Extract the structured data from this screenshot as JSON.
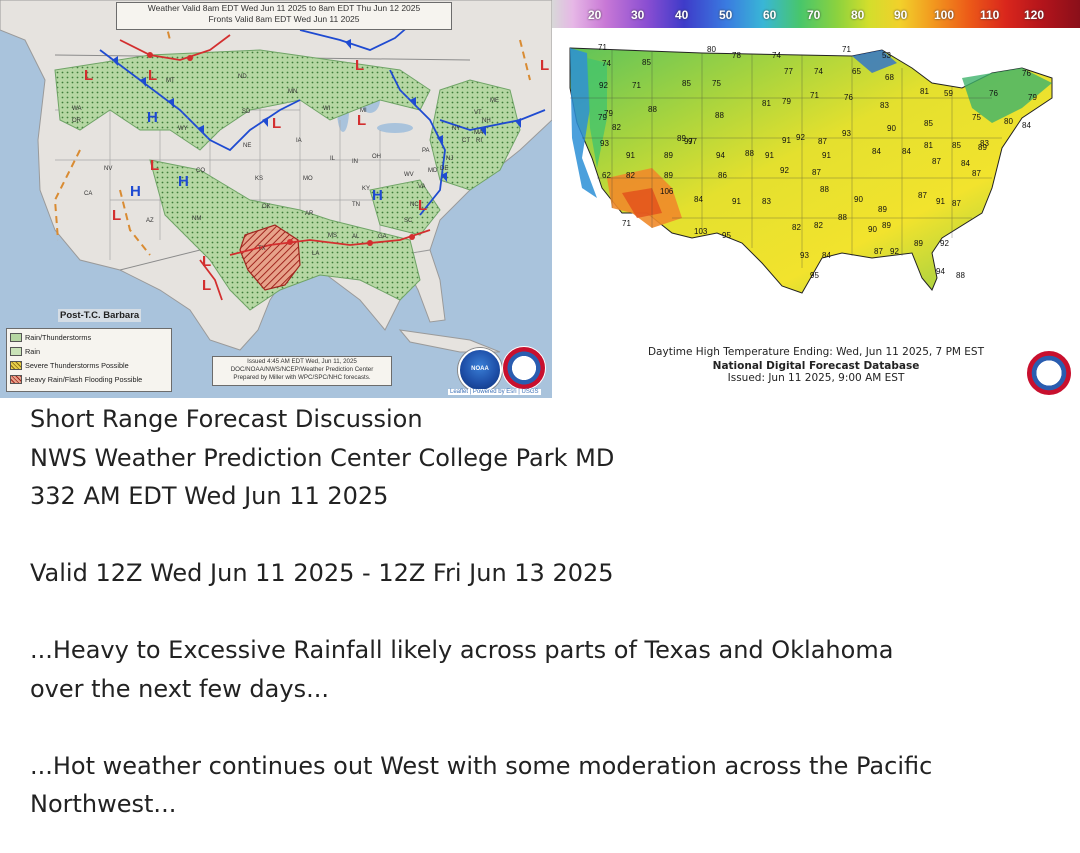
{
  "left_map": {
    "valid_line1": "Weather Valid 8am EDT Wed Jun 11 2025 to 8am EDT Thu Jun 12 2025",
    "valid_line2": "Fronts Valid 8am EDT Wed Jun 11 2025",
    "post_storm_label": "Post-T.C. Barbara",
    "legend": [
      {
        "label": "Rain/Thunderstorms",
        "color": "#a8cf9a"
      },
      {
        "label": "Rain",
        "color": "#b9dca8"
      },
      {
        "label": "Severe Thunderstorms Possible",
        "color": "#e8d04a"
      },
      {
        "label": "Heavy Rain/Flash Flooding Possible",
        "color": "#d04a45"
      }
    ],
    "issued_line1": "Issued 4:45 AM EDT Wed, Jun 11, 2025",
    "issued_line2": "DOC/NOAA/NWS/NCEP/Weather Prediction Center",
    "issued_line3": "Prepared by Miller with WPC/SPC/NHC forecasts.",
    "attribution": "Leaflet | Powered by Esri | USGS",
    "high_label": "H",
    "low_label": "L",
    "states": [
      "WA",
      "OR",
      "CA",
      "NV",
      "AZ",
      "MT",
      "WY",
      "CO",
      "NM",
      "ND",
      "SD",
      "NE",
      "KS",
      "OK",
      "TX",
      "MN",
      "IA",
      "MO",
      "AR",
      "LA",
      "WI",
      "IL",
      "IN",
      "OH",
      "KY",
      "TN",
      "MS",
      "AL",
      "GA",
      "MI",
      "PA",
      "WV",
      "VA",
      "NC",
      "SC",
      "NY",
      "ME",
      "VT",
      "NH",
      "MA",
      "CT",
      "RI",
      "NJ",
      "DE",
      "MD"
    ],
    "noaa_logo_text": "NOAA"
  },
  "right_map": {
    "scale_ticks": [
      "20",
      "30",
      "40",
      "50",
      "60",
      "70",
      "80",
      "90",
      "100",
      "110",
      "120"
    ],
    "caption_line1": "Daytime High Temperature Ending: Wed, Jun 11 2025, 7 PM EST",
    "caption_line2": "National Digital Forecast Database",
    "caption_line3": "Issued: Jun 11 2025, 9:00 AM EST",
    "temps": [
      "71",
      "74",
      "85",
      "80",
      "78",
      "74",
      "71",
      "53",
      "76",
      "79",
      "92",
      "71",
      "85",
      "75",
      "77",
      "74",
      "65",
      "68",
      "81",
      "59",
      "76",
      "79",
      "79",
      "88",
      "88",
      "81",
      "79",
      "71",
      "76",
      "83",
      "90",
      "85",
      "75",
      "80",
      "84",
      "82",
      "93",
      "89",
      "97",
      "94",
      "92",
      "93",
      "91",
      "87",
      "84",
      "84",
      "81",
      "85",
      "83",
      "91",
      "89",
      "88",
      "91",
      "91",
      "87",
      "84",
      "87",
      "89",
      "62",
      "82",
      "89",
      "92",
      "87",
      "106",
      "86",
      "88",
      "90",
      "89",
      "97",
      "84",
      "91",
      "83",
      "82",
      "82",
      "88",
      "89",
      "87",
      "91",
      "87",
      "71",
      "103",
      "95",
      "90",
      "87",
      "92",
      "89",
      "92",
      "93",
      "84",
      "94",
      "88",
      "95"
    ]
  },
  "discussion": {
    "line1": "Short Range Forecast Discussion",
    "line2": "NWS Weather Prediction Center College Park MD",
    "line3": "332 AM EDT Wed Jun 11 2025",
    "valid": "Valid 12Z Wed Jun 11 2025 - 12Z Fri Jun 13 2025",
    "headline1_a": "...Heavy to Excessive Rainfall likely across parts of Texas and Oklahoma",
    "headline1_b": "over the next few days...",
    "headline2_a": "...Hot weather continues out West with some moderation across the Pacific",
    "headline2_b": "Northwest..."
  }
}
